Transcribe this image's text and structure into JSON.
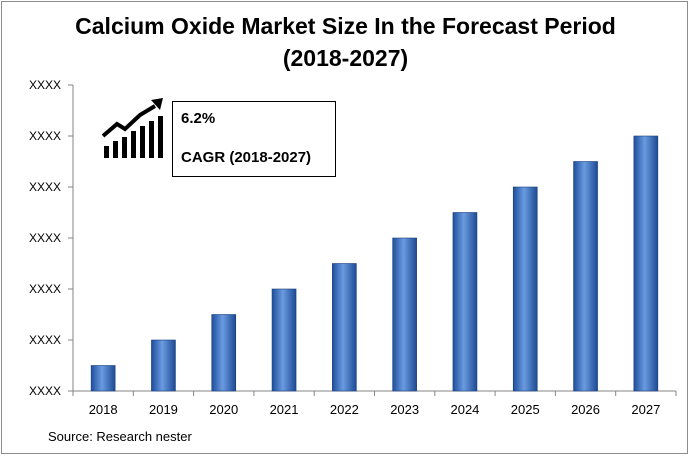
{
  "chart_data": {
    "type": "bar",
    "title": "Calcium Oxide Market Size In the Forecast Period (2018-2027)",
    "title_lines": [
      "Calcium Oxide Market Size In the Forecast Period",
      "(2018-2027)"
    ],
    "categories": [
      "2018",
      "2019",
      "2020",
      "2021",
      "2022",
      "2023",
      "2024",
      "2025",
      "2026",
      "2027"
    ],
    "values": [
      0.5,
      1.0,
      1.5,
      2.0,
      2.5,
      3.0,
      3.5,
      4.0,
      4.5,
      5.0
    ],
    "ytick_labels": [
      "XXXX",
      "XXXX",
      "XXXX",
      "XXXX",
      "XXXX",
      "XXXX",
      "XXXX"
    ],
    "ylim": [
      0,
      6
    ],
    "grid": false,
    "legend": "none",
    "bar_color": "#4a7cc9",
    "annotation": {
      "value": "6.2%",
      "label": "CAGR (2018-2027)",
      "icon": "growth-chart-icon"
    }
  },
  "source": "Source: Research nester"
}
